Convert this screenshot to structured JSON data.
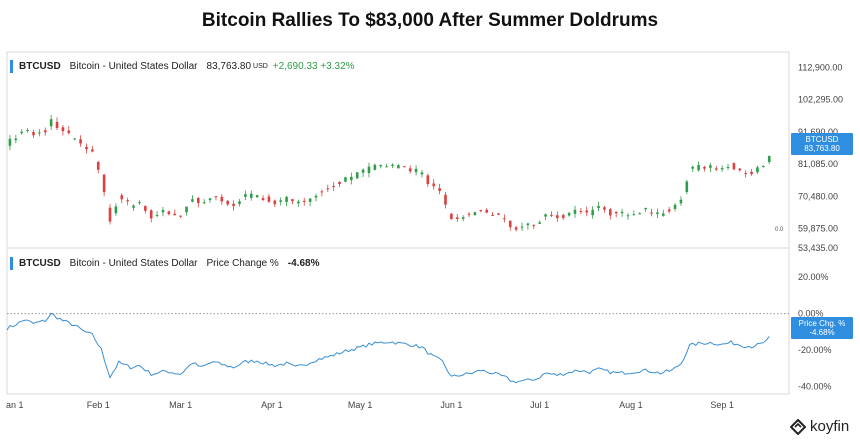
{
  "title": "Bitcoin Rallies To $83,000 After Summer Doldrums",
  "brand": "koyfin",
  "colors": {
    "up": "#2e9e48",
    "down": "#dc4040",
    "line": "#3a8fd4",
    "accent": "#2f8ee0",
    "grid": "#e6e6e6"
  },
  "upper_legend": {
    "symbol": "BTCUSD",
    "name": "Bitcoin - United States Dollar",
    "price": "83,763.80",
    "unit": "USD",
    "change": "+2,690.33 +3.32%"
  },
  "upper_tag": {
    "line1": "BTCUSD",
    "line2": "83,763.80"
  },
  "lower_legend": {
    "symbol": "BTCUSD",
    "name": "Bitcoin - United States Dollar",
    "metric": "Price Change %",
    "value": "-4.68%"
  },
  "lower_tag": {
    "line1": "Price Chg. %",
    "line2": "-4.68%"
  },
  "zero_marker": "0.0",
  "chart_data": [
    {
      "type": "candlestick",
      "series_name": "BTCUSD",
      "y_ticks": [
        112900,
        102295,
        91690,
        81085,
        70480,
        59875,
        53435
      ],
      "y_tick_labels": [
        "112,900.00",
        "102,295.00",
        "91,690.00",
        "81,085.00",
        "70,480.00",
        "59,875.00",
        "53,435.00"
      ],
      "ylim": [
        53435,
        118000
      ],
      "last_value": 83763.8,
      "closes": [
        {
          "date": "2021-01-01",
          "close": 88000
        },
        {
          "date": "2021-01-04",
          "close": 90000
        },
        {
          "date": "2021-01-07",
          "close": 92500
        },
        {
          "date": "2021-01-10",
          "close": 90500
        },
        {
          "date": "2021-01-14",
          "close": 92000
        },
        {
          "date": "2021-01-16",
          "close": 95500
        },
        {
          "date": "2021-01-20",
          "close": 92000
        },
        {
          "date": "2021-01-24",
          "close": 89500
        },
        {
          "date": "2021-01-27",
          "close": 86500
        },
        {
          "date": "2021-01-30",
          "close": 84500
        },
        {
          "date": "2021-02-02",
          "close": 77000
        },
        {
          "date": "2021-02-05",
          "close": 62500
        },
        {
          "date": "2021-02-08",
          "close": 70000
        },
        {
          "date": "2021-02-12",
          "close": 67500
        },
        {
          "date": "2021-02-15",
          "close": 68500
        },
        {
          "date": "2021-02-19",
          "close": 64000
        },
        {
          "date": "2021-02-24",
          "close": 65500
        },
        {
          "date": "2021-03-01",
          "close": 64000
        },
        {
          "date": "2021-03-05",
          "close": 70000
        },
        {
          "date": "2021-03-08",
          "close": 67500
        },
        {
          "date": "2021-03-12",
          "close": 70500
        },
        {
          "date": "2021-03-15",
          "close": 69000
        },
        {
          "date": "2021-03-19",
          "close": 67500
        },
        {
          "date": "2021-03-23",
          "close": 70500
        },
        {
          "date": "2021-03-27",
          "close": 71000
        },
        {
          "date": "2021-03-30",
          "close": 69500
        },
        {
          "date": "2021-04-02",
          "close": 68500
        },
        {
          "date": "2021-04-06",
          "close": 69500
        },
        {
          "date": "2021-04-09",
          "close": 67500
        },
        {
          "date": "2021-04-13",
          "close": 69500
        },
        {
          "date": "2021-04-16",
          "close": 71500
        },
        {
          "date": "2021-04-20",
          "close": 73000
        },
        {
          "date": "2021-04-23",
          "close": 74500
        },
        {
          "date": "2021-04-27",
          "close": 76500
        },
        {
          "date": "2021-05-01",
          "close": 78000
        },
        {
          "date": "2021-05-04",
          "close": 79500
        },
        {
          "date": "2021-05-08",
          "close": 80500
        },
        {
          "date": "2021-05-11",
          "close": 81000
        },
        {
          "date": "2021-05-15",
          "close": 80000
        },
        {
          "date": "2021-05-18",
          "close": 79500
        },
        {
          "date": "2021-05-22",
          "close": 78000
        },
        {
          "date": "2021-05-25",
          "close": 74000
        },
        {
          "date": "2021-05-29",
          "close": 70500
        },
        {
          "date": "2021-06-01",
          "close": 62500
        },
        {
          "date": "2021-06-04",
          "close": 63500
        },
        {
          "date": "2021-06-08",
          "close": 64500
        },
        {
          "date": "2021-06-11",
          "close": 66000
        },
        {
          "date": "2021-06-15",
          "close": 64500
        },
        {
          "date": "2021-06-19",
          "close": 62500
        },
        {
          "date": "2021-06-22",
          "close": 60000
        },
        {
          "date": "2021-06-26",
          "close": 60500
        },
        {
          "date": "2021-06-30",
          "close": 61500
        },
        {
          "date": "2021-07-03",
          "close": 64500
        },
        {
          "date": "2021-07-07",
          "close": 63500
        },
        {
          "date": "2021-07-10",
          "close": 64500
        },
        {
          "date": "2021-07-14",
          "close": 66000
        },
        {
          "date": "2021-07-18",
          "close": 65000
        },
        {
          "date": "2021-07-21",
          "close": 66500
        },
        {
          "date": "2021-07-25",
          "close": 65000
        },
        {
          "date": "2021-07-28",
          "close": 64500
        },
        {
          "date": "2021-08-01",
          "close": 65000
        },
        {
          "date": "2021-08-05",
          "close": 66000
        },
        {
          "date": "2021-08-08",
          "close": 65500
        },
        {
          "date": "2021-08-11",
          "close": 64500
        },
        {
          "date": "2021-08-15",
          "close": 66000
        },
        {
          "date": "2021-08-18",
          "close": 69500
        },
        {
          "date": "2021-08-21",
          "close": 79000
        },
        {
          "date": "2021-08-24",
          "close": 80000
        },
        {
          "date": "2021-08-28",
          "close": 80500
        },
        {
          "date": "2021-09-01",
          "close": 79500
        },
        {
          "date": "2021-09-04",
          "close": 80500
        },
        {
          "date": "2021-09-08",
          "close": 79000
        },
        {
          "date": "2021-09-11",
          "close": 78500
        },
        {
          "date": "2021-09-15",
          "close": 80000
        },
        {
          "date": "2021-09-17",
          "close": 83763.8
        }
      ]
    },
    {
      "type": "line",
      "series_name": "Price Change %",
      "y_ticks": [
        20,
        0,
        -20,
        -40
      ],
      "y_tick_labels": [
        "20.00%",
        "0.00%",
        "-20.00%",
        "-40.00%"
      ],
      "ylim": [
        -44,
        36
      ],
      "last_value": -4.68,
      "x_tick_labels": [
        {
          "date": "2021-01-01",
          "label": "an 1"
        },
        {
          "date": "2021-02-01",
          "label": "Feb 1"
        },
        {
          "date": "2021-03-01",
          "label": "Mar 1"
        },
        {
          "date": "2021-04-01",
          "label": "Apr 1"
        },
        {
          "date": "2021-05-01",
          "label": "May 1"
        },
        {
          "date": "2021-06-01",
          "label": "Jun 1"
        },
        {
          "date": "2021-07-01",
          "label": "Jul 1"
        },
        {
          "date": "2021-08-01",
          "label": "Aug 1"
        },
        {
          "date": "2021-09-01",
          "label": "Sep 1"
        }
      ]
    }
  ]
}
